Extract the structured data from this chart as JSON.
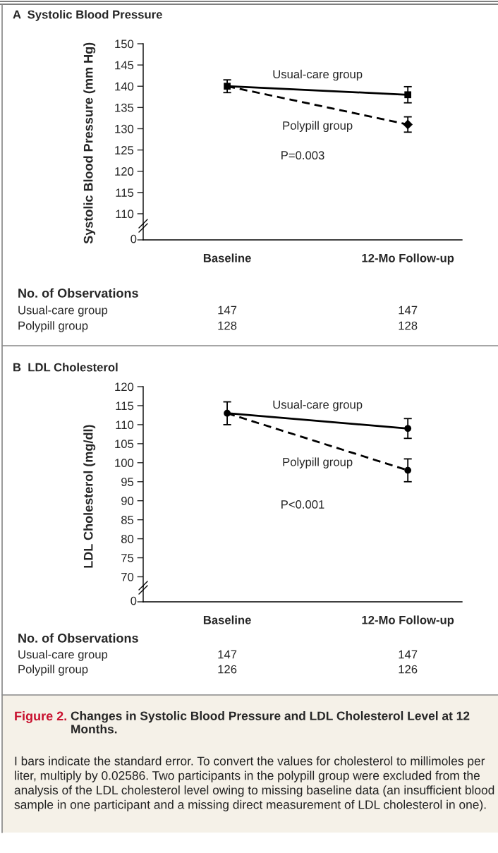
{
  "chart_data": [
    {
      "type": "line",
      "title": "A  Systolic Blood Pressure",
      "ylabel": "Systolic Blood Pressure (mm Hg)",
      "categories": [
        "Baseline",
        "12-Mo Follow-up"
      ],
      "series": [
        {
          "name": "Usual-care group",
          "color": "#000000",
          "values": [
            140,
            138
          ],
          "errors": [
            1.5,
            1.9
          ],
          "marker": "square",
          "line_style": "solid"
        },
        {
          "name": "Polypill group",
          "color": "#000000",
          "values": [
            140,
            131
          ],
          "errors": [
            null,
            1.8
          ],
          "marker": "diamond",
          "line_style": "dashed"
        }
      ],
      "ylim": [
        107.5,
        150
      ],
      "yticks": [
        110,
        115,
        120,
        125,
        130,
        135,
        140,
        145,
        150
      ],
      "grid": false,
      "legend": false,
      "annotations": [
        "P=0.003",
        "No. of Observations",
        "Usual-care group",
        "147",
        "147",
        "Polypill group",
        "128",
        "128",
        "0"
      ]
    },
    {
      "type": "line",
      "title": "B  LDL Cholesterol",
      "ylabel": "LDL Cholesterol (mg/dl)",
      "categories": [
        "Baseline",
        "12-Mo Follow-up"
      ],
      "series": [
        {
          "name": "Usual-care group",
          "color": "#000000",
          "values": [
            113,
            109
          ],
          "errors": [
            3,
            2.6
          ],
          "marker": "circle",
          "line_style": "solid"
        },
        {
          "name": "Polypill group",
          "color": "#000000",
          "values": [
            113,
            98
          ],
          "errors": [
            null,
            3
          ],
          "marker": "circle",
          "line_style": "dashed"
        }
      ],
      "ylim": [
        67.5,
        120
      ],
      "yticks": [
        70,
        75,
        80,
        85,
        90,
        95,
        100,
        105,
        110,
        115,
        120
      ],
      "grid": false,
      "legend": false,
      "annotations": [
        "P<0.001",
        "No. of Observations",
        "Usual-care group",
        "147",
        "147",
        "Polypill group",
        "126",
        "126",
        "Figure 2.",
        "Changes in Systolic Blood Pressure and LDL Cholesterol Level at 12 Months.",
        "I bars indicate the standard error. To convert the values for cholesterol to millimoles per liter, multiply by 0.02586. Two participants in the polypill group were excluded from the analysis of the LDL cholesterol level owing to missing baseline data (an insufficient blood sample in one participant and a missing direct measurement of LDL cholesterol in one).",
        "0"
      ]
    }
  ]
}
